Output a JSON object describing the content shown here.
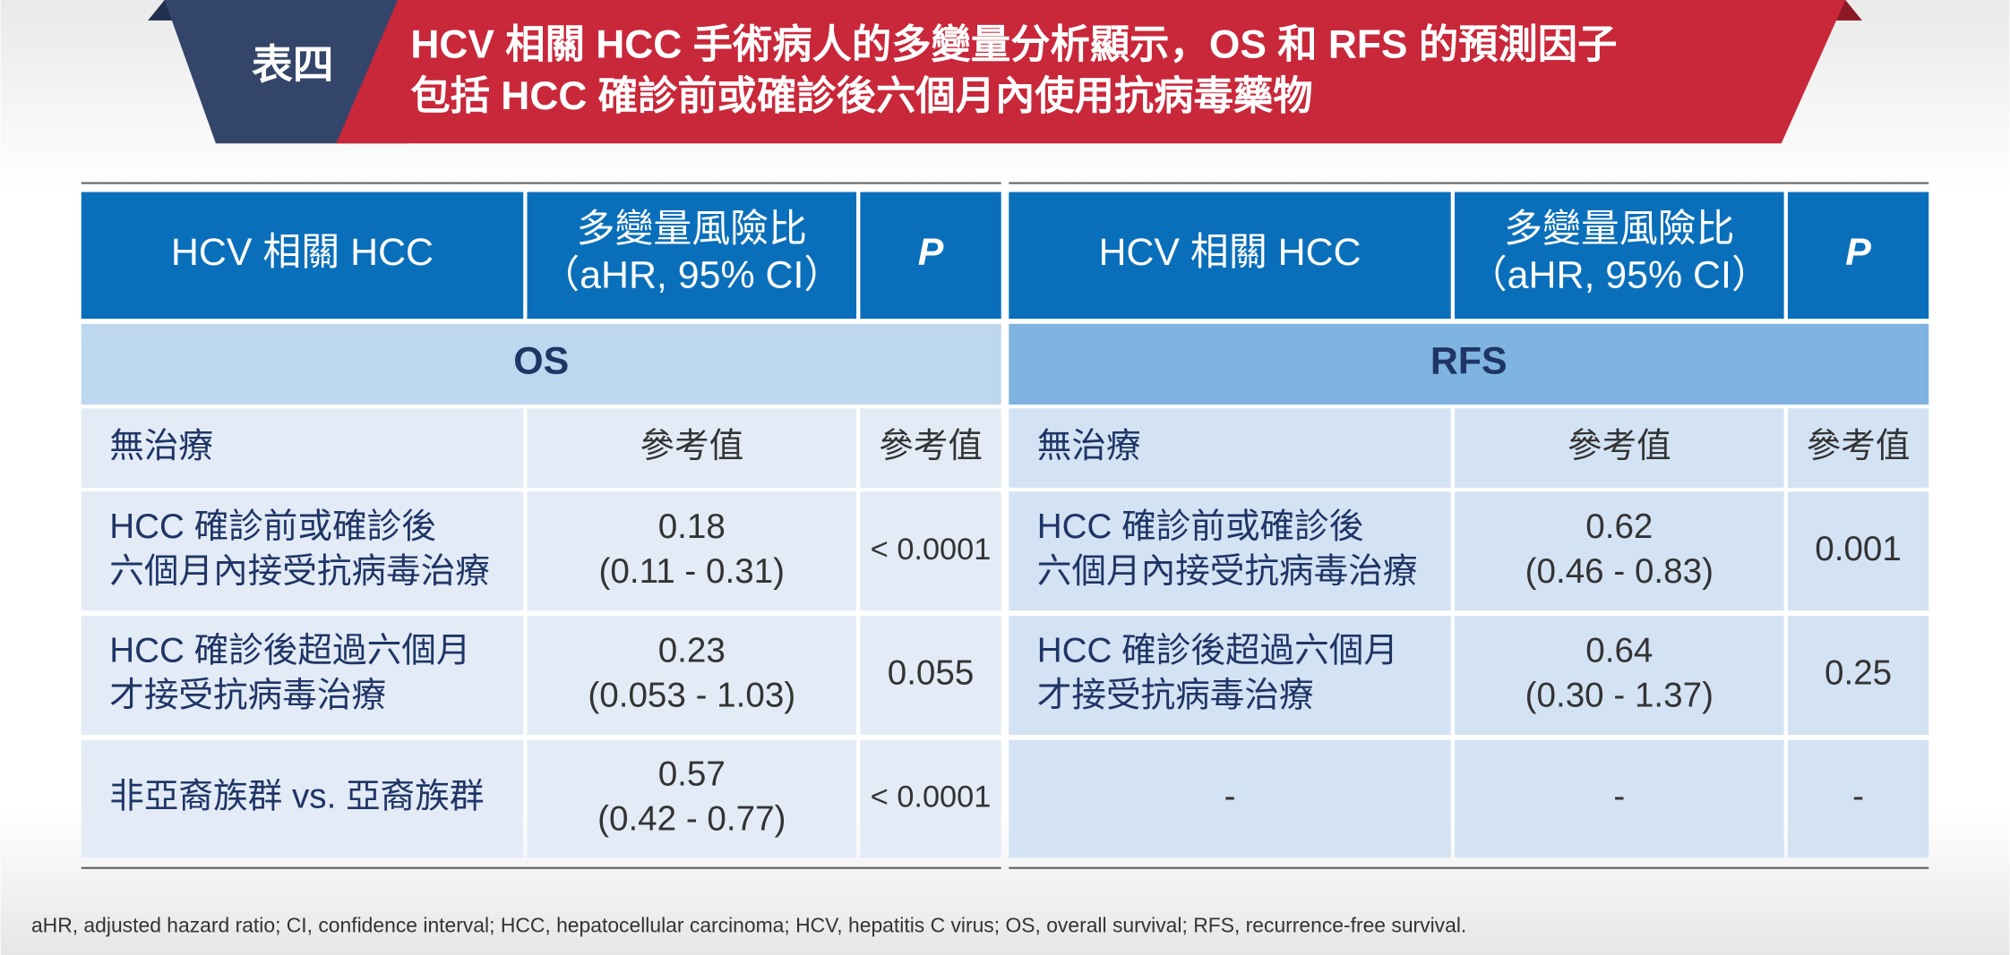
{
  "banner": {
    "label": "表四",
    "title_lines": [
      "HCV 相關 HCC 手術病人的多變量分析顯示，OS 和 RFS 的預測因子",
      "包括 HCC 確診前或確診後六個月內使用抗病毒藥物"
    ]
  },
  "tables": [
    {
      "header": [
        [
          "HCV 相關 HCC"
        ],
        [
          "多變量風險比",
          "（aHR, 95% CI）"
        ],
        [
          "P"
        ]
      ],
      "section": "OS",
      "rows": [
        [
          [
            "無治療"
          ],
          [
            "參考值"
          ],
          [
            "參考值"
          ]
        ],
        [
          [
            "HCC 確診前或確診後",
            "六個月內接受抗病毒治療"
          ],
          [
            "0.18",
            "(0.11 - 0.31)"
          ],
          [
            "< 0.0001"
          ]
        ],
        [
          [
            "HCC 確診後超過六個月",
            "才接受抗病毒治療"
          ],
          [
            "0.23",
            "(0.053 - 1.03)"
          ],
          [
            "0.055"
          ]
        ],
        [
          [
            "非亞裔族群 vs. 亞裔族群"
          ],
          [
            "0.57",
            "(0.42 - 0.77)"
          ],
          [
            "< 0.0001"
          ]
        ]
      ]
    },
    {
      "header": [
        [
          "HCV 相關 HCC"
        ],
        [
          "多變量風險比",
          "（aHR, 95% CI）"
        ],
        [
          "P"
        ]
      ],
      "section": "RFS",
      "rows": [
        [
          [
            "無治療"
          ],
          [
            "參考值"
          ],
          [
            "參考值"
          ]
        ],
        [
          [
            "HCC 確診前或確診後",
            "六個月內接受抗病毒治療"
          ],
          [
            "0.62",
            "(0.46 - 0.83)"
          ],
          [
            "0.001"
          ]
        ],
        [
          [
            "HCC 確診後超過六個月",
            "才接受抗病毒治療"
          ],
          [
            "0.64",
            "(0.30 - 1.37)"
          ],
          [
            "0.25"
          ]
        ],
        [
          [
            "-"
          ],
          [
            "-"
          ],
          [
            "-"
          ]
        ]
      ]
    }
  ],
  "footnote": "aHR, adjusted hazard ratio; CI, confidence interval; HCC, hepatocellular carcinoma; HCV, hepatitis C virus; OS, overall survival; RFS, recurrence-free survival."
}
